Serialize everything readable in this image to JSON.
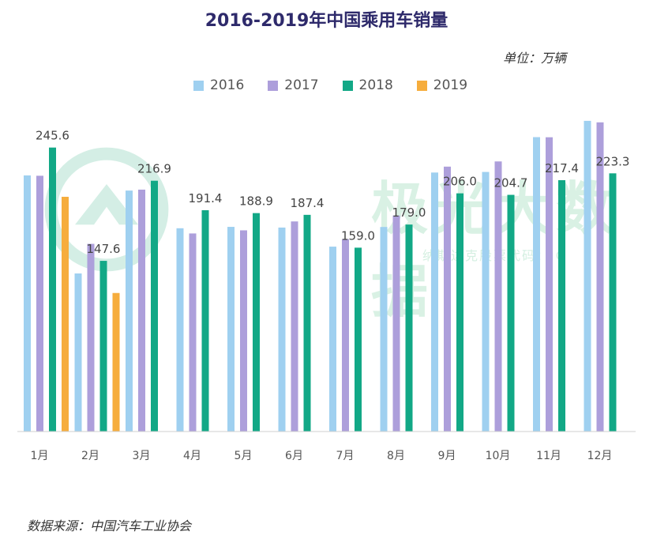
{
  "chart_data": {
    "type": "bar",
    "title": "2016-2019年中国乘用车销量",
    "unit": "单位：万辆",
    "source": "数据来源：中国汽车工业协会",
    "categories": [
      "1月",
      "2月",
      "3月",
      "4月",
      "5月",
      "6月",
      "7月",
      "8月",
      "9月",
      "10月",
      "11月",
      "12月"
    ],
    "ylim": [
      0,
      270
    ],
    "series": [
      {
        "name": "2016",
        "color": "#9fd0f0",
        "values": [
          221.5,
          136.7,
          208.4,
          175.8,
          177.0,
          176.4,
          159.9,
          176.9,
          224.0,
          224.5,
          254.6,
          268.7
        ]
      },
      {
        "name": "2017",
        "color": "#ad9fdb",
        "values": [
          221.2,
          162.3,
          209.2,
          171.3,
          174.0,
          181.7,
          166.4,
          186.8,
          229.1,
          233.6,
          254.5,
          267.4
        ]
      },
      {
        "name": "2018",
        "color": "#12a886",
        "values": [
          245.6,
          147.6,
          216.9,
          191.4,
          188.9,
          187.4,
          159.0,
          179.0,
          206.0,
          204.7,
          217.4,
          223.3
        ]
      },
      {
        "name": "2019",
        "color": "#f6ad3d",
        "values": [
          203.0,
          119.8,
          null,
          null,
          null,
          null,
          null,
          null,
          null,
          null,
          null,
          null
        ]
      }
    ],
    "data_labels": {
      "series": "2018",
      "values": [
        "245.6",
        "147.6",
        "216.9",
        "191.4",
        "188.9",
        "187.4",
        "159.0",
        "179.0",
        "206.0",
        "204.7",
        "217.4",
        "223.3"
      ]
    },
    "watermark": "极光大数据",
    "watermark_sub": "纳斯达克股票代码：JG"
  }
}
